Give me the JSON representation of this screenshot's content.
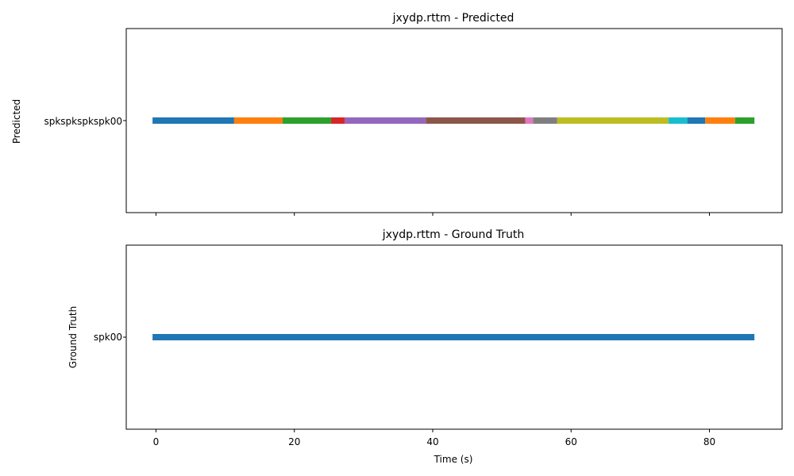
{
  "chart_data": [
    {
      "type": "timeline",
      "title": "jxydp.rttm - Predicted",
      "ylabel": "Predicted",
      "xlabel": "",
      "xlim": [
        -4.3,
        90.5
      ],
      "xticks": [
        0,
        20,
        40,
        60,
        80
      ],
      "show_xtick_labels": false,
      "row_label": "spkspkspkspk00",
      "segments": [
        {
          "start": -0.5,
          "end": 11.3,
          "color": "#1f77b4"
        },
        {
          "start": 11.3,
          "end": 18.3,
          "color": "#ff7f0e"
        },
        {
          "start": 18.3,
          "end": 25.3,
          "color": "#2ca02c"
        },
        {
          "start": 25.3,
          "end": 27.3,
          "color": "#d62728"
        },
        {
          "start": 27.3,
          "end": 39.0,
          "color": "#9467bd"
        },
        {
          "start": 39.0,
          "end": 53.4,
          "color": "#8c564b"
        },
        {
          "start": 53.4,
          "end": 54.5,
          "color": "#e377c2"
        },
        {
          "start": 54.5,
          "end": 58.0,
          "color": "#7f7f7f"
        },
        {
          "start": 58.0,
          "end": 74.1,
          "color": "#bcbd22"
        },
        {
          "start": 74.1,
          "end": 76.8,
          "color": "#17becf"
        },
        {
          "start": 76.8,
          "end": 79.4,
          "color": "#1f77b4"
        },
        {
          "start": 79.4,
          "end": 83.7,
          "color": "#ff7f0e"
        },
        {
          "start": 83.7,
          "end": 86.5,
          "color": "#2ca02c"
        }
      ]
    },
    {
      "type": "timeline",
      "title": "jxydp.rttm - Ground Truth",
      "ylabel": "Ground Truth",
      "xlabel": "Time (s)",
      "xlim": [
        -4.3,
        90.5
      ],
      "xticks": [
        0,
        20,
        40,
        60,
        80
      ],
      "show_xtick_labels": true,
      "row_label": "spk00",
      "segments": [
        {
          "start": -0.5,
          "end": 86.5,
          "color": "#1f77b4"
        }
      ]
    }
  ]
}
